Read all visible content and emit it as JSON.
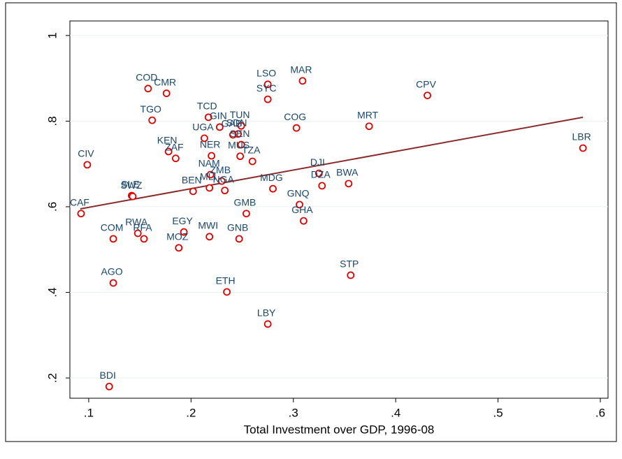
{
  "chart_data": {
    "type": "scatter",
    "x_label": "Total Investment over GDP, 1996-08",
    "xlim": [
      0.0816,
      0.6075
    ],
    "ylim": [
      0.1527,
      1.034
    ],
    "xticks": [
      {
        "value": 0.1,
        "label": ".1"
      },
      {
        "value": 0.2,
        "label": ".2"
      },
      {
        "value": 0.3,
        "label": ".3"
      },
      {
        "value": 0.4,
        "label": ".4"
      },
      {
        "value": 0.5,
        "label": ".5"
      },
      {
        "value": 0.6,
        "label": ".6"
      }
    ],
    "yticks": [
      {
        "value": 0.2,
        "label": ".2"
      },
      {
        "value": 0.4,
        "label": ".4"
      },
      {
        "value": 0.6,
        "label": ".6"
      },
      {
        "value": 0.8,
        "label": ".8"
      },
      1
    ],
    "grid": true,
    "points": {
      "color": "#e00000",
      "label_color": "#1a476f",
      "labels": [
        "CAF",
        "CIV",
        "COM",
        "AGO",
        "BDI",
        "SLE",
        "SWZ",
        "RWA",
        "RFA",
        "COD",
        "CMR",
        "TGO",
        "KEN",
        "ZAF",
        "EGY",
        "MOZ",
        "BEN",
        "TCD",
        "UGA",
        "NER",
        "NAM",
        "MLI",
        "ZMB",
        "NGA",
        "GIN",
        "TUN",
        "SDN",
        "GAB",
        "SEN",
        "MUS",
        "TZA",
        "LSO",
        "SYC",
        "MAR",
        "COG",
        "MDG",
        "GMB",
        "MWI",
        "GNB",
        "ETH",
        "LBY",
        "DJI",
        "DZA",
        "GNQ",
        "GHA",
        "BWA",
        "STP",
        "MRT",
        "CPV",
        "LBR"
      ],
      "x": [
        0.0925,
        0.0986,
        0.124,
        0.124,
        0.12,
        0.142,
        0.143,
        0.148,
        0.154,
        0.158,
        0.176,
        0.162,
        0.178,
        0.185,
        0.193,
        0.188,
        0.202,
        0.217,
        0.213,
        0.22,
        0.219,
        0.218,
        0.23,
        0.233,
        0.228,
        0.249,
        0.246,
        0.241,
        0.249,
        0.248,
        0.26,
        0.275,
        0.275,
        0.309,
        0.303,
        0.28,
        0.254,
        0.218,
        0.247,
        0.235,
        0.275,
        0.325,
        0.328,
        0.306,
        0.31,
        0.354,
        0.356,
        0.374,
        0.431,
        0.583
      ],
      "values": [
        0.584,
        0.698,
        0.525,
        0.422,
        0.18,
        0.626,
        0.624,
        0.538,
        0.525,
        0.876,
        0.865,
        0.802,
        0.729,
        0.713,
        0.541,
        0.504,
        0.636,
        0.809,
        0.76,
        0.719,
        0.675,
        0.644,
        0.66,
        0.638,
        0.786,
        0.789,
        0.77,
        0.768,
        0.745,
        0.718,
        0.706,
        0.886,
        0.851,
        0.894,
        0.784,
        0.642,
        0.584,
        0.53,
        0.525,
        0.401,
        0.326,
        0.678,
        0.649,
        0.605,
        0.567,
        0.654,
        0.44,
        0.788,
        0.86,
        0.737
      ]
    },
    "fit_line": {
      "color": "#8b2b2b",
      "x": [
        0.0918,
        0.583
      ],
      "values": [
        0.595,
        0.809
      ]
    }
  }
}
